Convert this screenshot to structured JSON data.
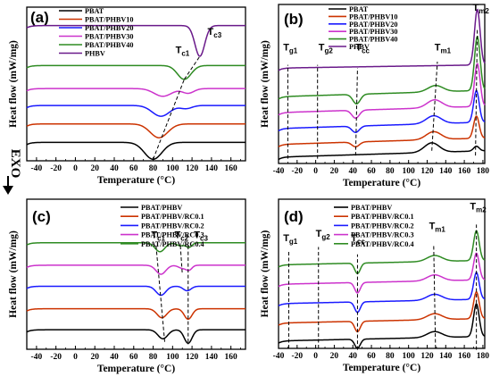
{
  "exo_label": "EXO",
  "chart_data": [
    {
      "panel_label": "(a)",
      "type": "line",
      "xlabel": "Temperature (°C)",
      "ylabel": "Heat flow (mW/mg)",
      "xlim": [
        -50,
        175
      ],
      "xticks": [
        -40,
        -20,
        0,
        20,
        40,
        60,
        80,
        100,
        120,
        140,
        160
      ],
      "legend_position": "top-left",
      "series": [
        {
          "name": "PBAT",
          "color": "#000000",
          "baseline": 0.12,
          "peaks": [
            {
              "x": 80,
              "depth": 0.11,
              "width": 9
            }
          ]
        },
        {
          "name": "PBAT/PHBV10",
          "color": "#cc3300",
          "baseline": 0.24,
          "peaks": [
            {
              "x": 86,
              "depth": 0.09,
              "width": 9
            }
          ]
        },
        {
          "name": "PBAT/PHBV20",
          "color": "#1a1aff",
          "baseline": 0.36,
          "peaks": [
            {
              "x": 88,
              "depth": 0.07,
              "width": 9
            },
            {
              "x": 114,
              "depth": 0.02,
              "width": 6
            }
          ]
        },
        {
          "name": "PBAT/PHBV30",
          "color": "#cc33cc",
          "baseline": 0.47,
          "peaks": [
            {
              "x": 90,
              "depth": 0.05,
              "width": 9
            },
            {
              "x": 116,
              "depth": 0.03,
              "width": 6
            }
          ]
        },
        {
          "name": "PBAT/PHBV40",
          "color": "#2e8b22",
          "baseline": 0.62,
          "peaks": [
            {
              "x": 112,
              "depth": 0.09,
              "width": 7
            }
          ]
        },
        {
          "name": "PHBV",
          "color": "#6a1a8a",
          "baseline": 0.88,
          "peaks": [
            {
              "x": 128,
              "depth": 0.2,
              "width": 5
            }
          ]
        }
      ],
      "annotations": [
        {
          "label": "T",
          "sub": "c1",
          "x": 103,
          "y": 0.7
        },
        {
          "label": "T",
          "sub": "c3",
          "x": 136,
          "y": 0.82
        }
      ],
      "guide_lines": [
        {
          "x1": 80,
          "y1": 0.01,
          "x2": 112,
          "y2": 0.53
        },
        {
          "x1": 112,
          "y1": 0.53,
          "x2": 128,
          "y2": 0.68
        }
      ]
    },
    {
      "panel_label": "(b)",
      "type": "line",
      "xlabel": "Temperature (°C)",
      "ylabel": "Heat flow (mW/mg)",
      "xlim": [
        -40,
        182
      ],
      "xticks": [
        -40,
        -20,
        0,
        20,
        40,
        60,
        80,
        100,
        120,
        140,
        160,
        180
      ],
      "legend_position": "top-center",
      "series": [
        {
          "name": "PBAT",
          "color": "#000000",
          "baseline": 0.04,
          "slope": 0.04,
          "peaks": [
            {
              "x": 125,
              "depth": -0.06,
              "width": 8
            },
            {
              "x": 173,
              "depth": -0.03,
              "width": 3
            }
          ]
        },
        {
          "name": "PBAT/PHBV10",
          "color": "#cc3300",
          "baseline": 0.12,
          "slope": 0.04,
          "peaks": [
            {
              "x": 43,
              "depth": 0.03,
              "width": 4
            },
            {
              "x": 127,
              "depth": -0.05,
              "width": 8
            },
            {
              "x": 173,
              "depth": -0.14,
              "width": 3
            }
          ]
        },
        {
          "name": "PBAT/PHBV20",
          "color": "#1a1aff",
          "baseline": 0.22,
          "slope": 0.04,
          "peaks": [
            {
              "x": 43,
              "depth": 0.04,
              "width": 4
            },
            {
              "x": 127,
              "depth": -0.05,
              "width": 8
            },
            {
              "x": 173,
              "depth": -0.2,
              "width": 3
            }
          ]
        },
        {
          "name": "PBAT/PHBV30",
          "color": "#cc33cc",
          "baseline": 0.32,
          "slope": 0.04,
          "peaks": [
            {
              "x": 43,
              "depth": 0.05,
              "width": 4
            },
            {
              "x": 128,
              "depth": -0.05,
              "width": 8
            },
            {
              "x": 174,
              "depth": -0.27,
              "width": 3
            }
          ]
        },
        {
          "name": "PBAT/PHBV40",
          "color": "#2e8b22",
          "baseline": 0.42,
          "slope": 0.04,
          "peaks": [
            {
              "x": 44,
              "depth": 0.06,
              "width": 4
            },
            {
              "x": 129,
              "depth": -0.04,
              "width": 8
            },
            {
              "x": 174,
              "depth": -0.34,
              "width": 3
            }
          ]
        },
        {
          "name": "PHBV",
          "color": "#6a1a8a",
          "baseline": 0.6,
          "slope": 0.02,
          "peaks": [
            {
              "x": 174,
              "depth": -0.35,
              "width": 3
            }
          ]
        }
      ],
      "annotations": [
        {
          "label": "T",
          "sub": "g1",
          "x": -35,
          "y": 0.71
        },
        {
          "label": "T",
          "sub": "g2",
          "x": 3,
          "y": 0.71
        },
        {
          "label": "T",
          "sub": "cc",
          "x": 43,
          "y": 0.71
        },
        {
          "label": "T",
          "sub": "m1",
          "x": 128,
          "y": 0.71
        },
        {
          "label": "T",
          "sub": "m2",
          "x": 169,
          "y": 0.96
        }
      ],
      "guide_lines": [
        {
          "x1": -30,
          "y1": 0.03,
          "x2": -30,
          "y2": 0.62
        },
        {
          "x1": 2,
          "y1": 0.03,
          "x2": 2,
          "y2": 0.62
        },
        {
          "x1": 43,
          "y1": 0.05,
          "x2": 45,
          "y2": 0.6
        },
        {
          "x1": 125,
          "y1": 0.08,
          "x2": 131,
          "y2": 0.64
        },
        {
          "x1": 172,
          "y1": 0.05,
          "x2": 174,
          "y2": 0.85
        }
      ]
    },
    {
      "panel_label": "(c)",
      "type": "line",
      "xlabel": "Temperature (°C)",
      "ylabel": "Heat flow (mW/mg)",
      "xlim": [
        -50,
        175
      ],
      "xticks": [
        -40,
        -20,
        0,
        20,
        40,
        60,
        80,
        100,
        120,
        140,
        160
      ],
      "legend_position": "top-right",
      "series": [
        {
          "name": "PBAT/PHBV",
          "color": "#000000",
          "baseline": 0.13,
          "peaks": [
            {
              "x": 90,
              "depth": 0.06,
              "width": 5
            },
            {
              "x": 116,
              "depth": 0.09,
              "width": 4
            }
          ]
        },
        {
          "name": "PBAT/PHBV/RC0.1",
          "color": "#cc3300",
          "baseline": 0.27,
          "peaks": [
            {
              "x": 89,
              "depth": 0.06,
              "width": 5
            },
            {
              "x": 116,
              "depth": 0.07,
              "width": 4
            }
          ]
        },
        {
          "name": "PBAT/PHBV/RC0.2",
          "color": "#1a1aff",
          "baseline": 0.42,
          "peaks": [
            {
              "x": 88,
              "depth": 0.06,
              "width": 5
            },
            {
              "x": 115,
              "depth": 0.03,
              "width": 4
            }
          ]
        },
        {
          "name": "PBAT/PHBV/RC0.3",
          "color": "#cc33cc",
          "baseline": 0.56,
          "peaks": [
            {
              "x": 88,
              "depth": 0.06,
              "width": 5
            },
            {
              "x": 110,
              "depth": 0.02,
              "width": 4
            },
            {
              "x": 117,
              "depth": 0.03,
              "width": 3
            }
          ]
        },
        {
          "name": "PBAT/PHBV/RC0.4",
          "color": "#2e8b22",
          "baseline": 0.71,
          "peaks": [
            {
              "x": 87,
              "depth": 0.06,
              "width": 5
            },
            {
              "x": 108,
              "depth": 0.02,
              "width": 4
            },
            {
              "x": 117,
              "depth": 0.03,
              "width": 3
            }
          ]
        }
      ],
      "annotations": [
        {
          "label": "T",
          "sub": "c1",
          "x": 78,
          "y": 0.74
        },
        {
          "label": "T",
          "sub": "c2",
          "x": 102,
          "y": 0.74
        },
        {
          "label": "T",
          "sub": "c3",
          "x": 122,
          "y": 0.74
        }
      ],
      "guide_lines": [
        {
          "x1": 83,
          "y1": 0.69,
          "x2": 92,
          "y2": 0.04
        },
        {
          "x1": 108,
          "y1": 0.69,
          "x2": 110,
          "y2": 0.5
        },
        {
          "x1": 116,
          "y1": 0.69,
          "x2": 116,
          "y2": 0.03
        }
      ]
    },
    {
      "panel_label": "(d)",
      "type": "line",
      "xlabel": "Temperature (°C)",
      "ylabel": "Heat flow (mW/mg)",
      "xlim": [
        -40,
        182
      ],
      "xticks": [
        -40,
        -20,
        0,
        20,
        40,
        60,
        80,
        100,
        120,
        140,
        160,
        180
      ],
      "legend_position": "top-center",
      "series": [
        {
          "name": "PBAT/PHBV",
          "color": "#000000",
          "baseline": 0.05,
          "slope": 0.03,
          "peaks": [
            {
              "x": 45,
              "depth": 0.06,
              "width": 3
            },
            {
              "x": 128,
              "depth": -0.04,
              "width": 8
            },
            {
              "x": 173,
              "depth": -0.22,
              "width": 3
            }
          ]
        },
        {
          "name": "PBAT/PHBV/RC0.1",
          "color": "#cc3300",
          "baseline": 0.17,
          "slope": 0.03,
          "peaks": [
            {
              "x": 45,
              "depth": 0.07,
              "width": 3
            },
            {
              "x": 128,
              "depth": -0.04,
              "width": 8
            },
            {
              "x": 173,
              "depth": -0.18,
              "width": 3
            }
          ]
        },
        {
          "name": "PBAT/PHBV/RC0.2",
          "color": "#1a1aff",
          "baseline": 0.3,
          "slope": 0.03,
          "peaks": [
            {
              "x": 45,
              "depth": 0.07,
              "width": 3
            },
            {
              "x": 128,
              "depth": -0.04,
              "width": 8
            },
            {
              "x": 173,
              "depth": -0.18,
              "width": 3
            }
          ]
        },
        {
          "name": "PBAT/PHBV/RC0.3",
          "color": "#cc33cc",
          "baseline": 0.43,
          "slope": 0.03,
          "peaks": [
            {
              "x": 45,
              "depth": 0.07,
              "width": 3
            },
            {
              "x": 128,
              "depth": -0.04,
              "width": 8
            },
            {
              "x": 173,
              "depth": -0.18,
              "width": 3
            }
          ]
        },
        {
          "name": "PBAT/PHBV/RC0.4",
          "color": "#2e8b22",
          "baseline": 0.56,
          "slope": 0.03,
          "peaks": [
            {
              "x": 45,
              "depth": 0.07,
              "width": 3
            },
            {
              "x": 128,
              "depth": -0.04,
              "width": 8
            },
            {
              "x": 173,
              "depth": -0.2,
              "width": 3
            }
          ]
        }
      ],
      "annotations": [
        {
          "label": "T",
          "sub": "g1",
          "x": -35,
          "y": 0.72
        },
        {
          "label": "T",
          "sub": "g2",
          "x": 0,
          "y": 0.75
        },
        {
          "label": "T",
          "sub": "cc",
          "x": 38,
          "y": 0.72
        },
        {
          "label": "T",
          "sub": "m1",
          "x": 122,
          "y": 0.8
        },
        {
          "label": "T",
          "sub": "m2",
          "x": 166,
          "y": 0.93
        }
      ],
      "guide_lines": [
        {
          "x1": -29,
          "y1": 0.0,
          "x2": -29,
          "y2": 0.66
        },
        {
          "x1": 3,
          "y1": 0.0,
          "x2": 3,
          "y2": 0.68
        },
        {
          "x1": 45,
          "y1": -0.01,
          "x2": 45,
          "y2": 0.63
        },
        {
          "x1": 129,
          "y1": 0.0,
          "x2": 127,
          "y2": 0.7
        },
        {
          "x1": 173,
          "y1": -0.01,
          "x2": 173,
          "y2": 0.83
        }
      ]
    }
  ]
}
